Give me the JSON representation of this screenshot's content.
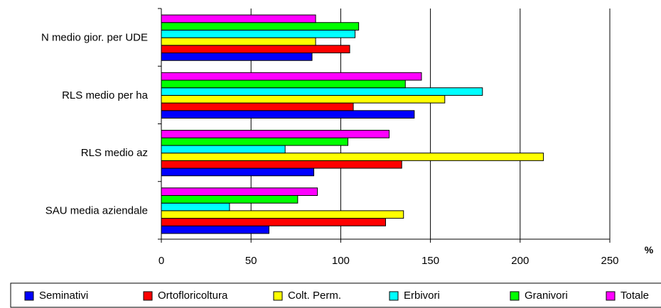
{
  "chart_data": {
    "type": "bar",
    "orientation": "horizontal",
    "categories": [
      "SAU media aziendale",
      "RLS medio az",
      "RLS medio per ha",
      "N medio gior. per UDE"
    ],
    "series": [
      {
        "name": "Seminativi",
        "color": "#0000ff",
        "values": [
          60,
          85,
          141,
          84
        ]
      },
      {
        "name": "Ortofloricoltura",
        "color": "#ff0000",
        "values": [
          125,
          134,
          107,
          105
        ]
      },
      {
        "name": "Colt. Perm.",
        "color": "#ffff00",
        "values": [
          135,
          213,
          158,
          86
        ]
      },
      {
        "name": "Erbivori",
        "color": "#00ffff",
        "values": [
          38,
          69,
          179,
          108
        ]
      },
      {
        "name": "Granivori",
        "color": "#00ff00",
        "values": [
          76,
          104,
          136,
          110
        ]
      },
      {
        "name": "Totale",
        "color": "#ff00ff",
        "values": [
          87,
          127,
          145,
          86
        ]
      }
    ],
    "xlim": [
      0,
      250
    ],
    "x_ticks": [
      "0",
      "50",
      "100",
      "150",
      "200",
      "250"
    ],
    "unit": "%",
    "grid": true,
    "legend_placement": "bottom"
  }
}
